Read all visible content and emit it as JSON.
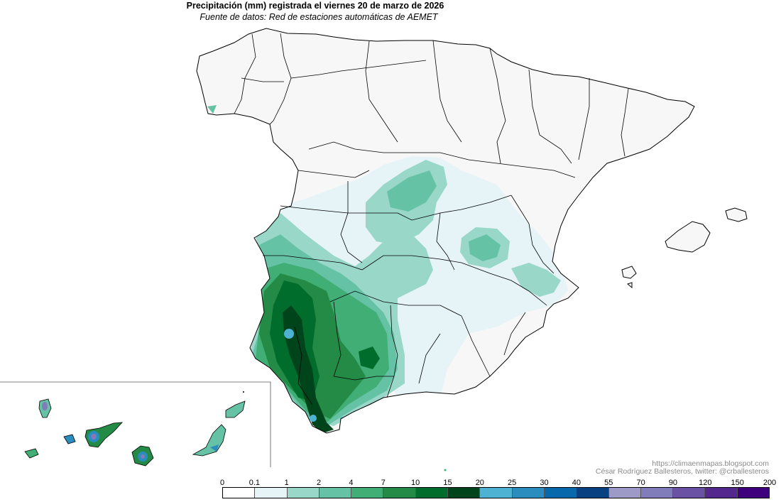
{
  "title": "Precipitación (mm) registrada el viernes 20 de marzo de 2026",
  "subtitle": "Fuente de datos: Red de estaciones automáticas de AEMET",
  "credit": {
    "url": "https://climaenmapas.blogspot.com",
    "author": "César Rodríguez Ballesteros, twitter: @crballesteros"
  },
  "legend": {
    "breaks": [
      "0",
      "0.1",
      "1",
      "2",
      "4",
      "7",
      "10",
      "15",
      "20",
      "25",
      "30",
      "40",
      "55",
      "70",
      "90",
      "120",
      "150",
      "200"
    ],
    "colors": [
      "#ffffff",
      "#e6f4f8",
      "#99d8c9",
      "#66c2a4",
      "#41ae76",
      "#238b45",
      "#006d2c",
      "#00441b",
      "#4eb3d3",
      "#2b8cbe",
      "#0868ac",
      "#084081",
      "#9e9ac8",
      "#807dba",
      "#6a51a3",
      "#54278f",
      "#3f007d"
    ]
  }
}
